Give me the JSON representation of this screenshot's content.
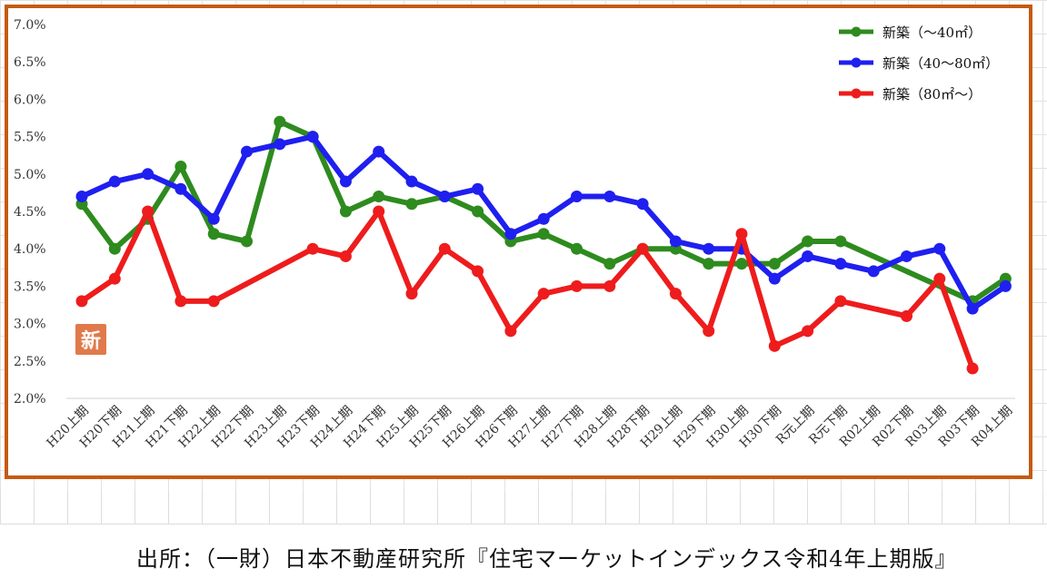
{
  "source_note": "出所：（一財）日本不動産研究所『住宅マーケットインデックス令和4年上期版』",
  "badge_text": "新",
  "colors": {
    "frame": "#c55a11",
    "series": [
      "#2e8b1e",
      "#1f1ff0",
      "#ee1c1c"
    ]
  },
  "chart_data": {
    "type": "line",
    "title": "",
    "xlabel": "",
    "ylabel": "",
    "ylim": [
      2.0,
      7.0
    ],
    "yticks": [
      "2.0%",
      "2.5%",
      "3.0%",
      "3.5%",
      "4.0%",
      "4.5%",
      "5.0%",
      "5.5%",
      "6.0%",
      "6.5%",
      "7.0%"
    ],
    "categories": [
      "H20上期",
      "H20下期",
      "H21上期",
      "H21下期",
      "H22上期",
      "H22下期",
      "H23上期",
      "H23下期",
      "H24上期",
      "H24下期",
      "H25上期",
      "H25下期",
      "H26上期",
      "H26下期",
      "H27上期",
      "H27下期",
      "H28上期",
      "H28下期",
      "H29上期",
      "H29下期",
      "H30上期",
      "H30下期",
      "R元上期",
      "R元下期",
      "R02上期",
      "R02下期",
      "R03上期",
      "R03下期",
      "R04上期"
    ],
    "grid": "horizontal",
    "legend_position": "top-right",
    "series": [
      {
        "name": "新築（～40㎡）",
        "values": [
          4.6,
          4.0,
          4.4,
          5.1,
          4.2,
          4.1,
          5.7,
          5.5,
          4.5,
          4.7,
          4.6,
          4.7,
          4.5,
          4.1,
          4.2,
          4.0,
          3.8,
          4.0,
          4.0,
          3.8,
          3.8,
          3.8,
          4.1,
          4.1,
          null,
          null,
          null,
          3.3,
          3.6
        ]
      },
      {
        "name": "新築（40～80㎡）",
        "values": [
          4.7,
          4.9,
          5.0,
          4.8,
          4.4,
          5.3,
          5.4,
          5.5,
          4.9,
          5.3,
          4.9,
          4.7,
          4.8,
          4.2,
          4.4,
          4.7,
          4.7,
          4.6,
          4.1,
          4.0,
          4.0,
          3.6,
          3.9,
          3.8,
          3.7,
          3.9,
          4.0,
          3.2,
          3.5
        ]
      },
      {
        "name": "新築（80㎡～）",
        "values": [
          3.3,
          3.6,
          4.5,
          3.3,
          3.3,
          null,
          null,
          4.0,
          3.9,
          4.5,
          3.4,
          4.0,
          3.7,
          2.9,
          3.4,
          3.5,
          3.5,
          4.0,
          3.4,
          2.9,
          4.2,
          2.7,
          2.9,
          3.3,
          null,
          3.1,
          3.6,
          2.4,
          null
        ]
      }
    ]
  }
}
